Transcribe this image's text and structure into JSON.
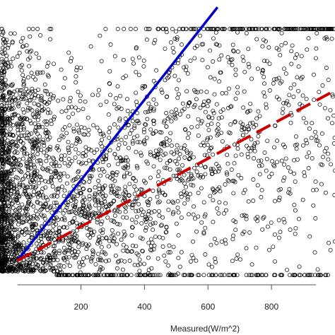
{
  "chart_data": {
    "type": "scatter",
    "title": "",
    "xlabel": "Measured(W/m^2)",
    "ylabel": "",
    "xlim": [
      -55,
      1000
    ],
    "ylim": [
      -65,
      720
    ],
    "xticks": [
      200,
      400,
      600,
      800
    ],
    "xtick_labels": [
      "200",
      "400",
      "600",
      "800"
    ],
    "grid": false,
    "legend": "none",
    "marker": "open-circle",
    "colors": {
      "points": "#000000",
      "solid_line": "#0000cc",
      "dashed_line": "#cc0000",
      "axis": "#555555"
    },
    "lines": [
      {
        "style": "solid",
        "color": "#0000cc",
        "x": [
          0,
          630
        ],
        "y": [
          0,
          700
        ]
      },
      {
        "style": "dashed",
        "color": "#cc0000",
        "x": [
          0,
          1000
        ],
        "y": [
          0,
          470
        ]
      }
    ],
    "point_summary": {
      "count": 3200,
      "x_range": [
        -50,
        1000
      ],
      "y_range": [
        -40,
        640
      ]
    }
  }
}
